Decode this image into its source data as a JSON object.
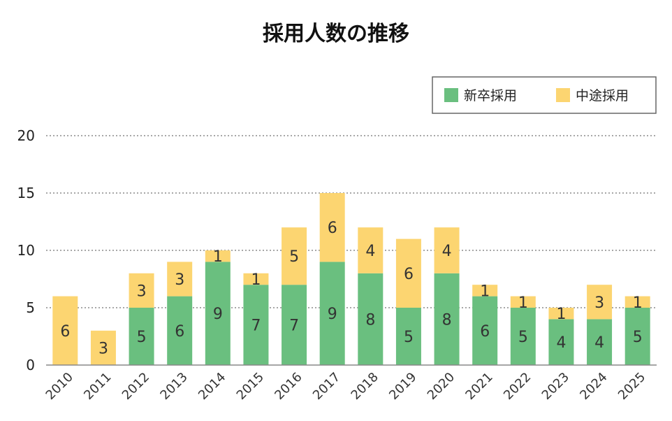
{
  "chart_data": {
    "type": "bar",
    "stacked": true,
    "title": "採用人数の推移",
    "xlabel": "",
    "ylabel": "",
    "categories": [
      "2010",
      "2011",
      "2012",
      "2013",
      "2014",
      "2015",
      "2016",
      "2017",
      "2018",
      "2019",
      "2020",
      "2021",
      "2022",
      "2023",
      "2024",
      "2025"
    ],
    "series": [
      {
        "name": "新卒採用",
        "color": "#6abf7f",
        "values": [
          0,
          0,
          5,
          6,
          9,
          7,
          7,
          9,
          8,
          5,
          8,
          6,
          5,
          4,
          4,
          5
        ]
      },
      {
        "name": "中途採用",
        "color": "#fcd571",
        "values": [
          6,
          3,
          3,
          3,
          1,
          1,
          5,
          6,
          4,
          6,
          4,
          1,
          1,
          1,
          3,
          1
        ]
      }
    ],
    "ylim": [
      0,
      20
    ],
    "yticks": [
      0,
      5,
      10,
      15,
      20
    ],
    "grid": "dotted horizontal",
    "legend": "top-right"
  }
}
